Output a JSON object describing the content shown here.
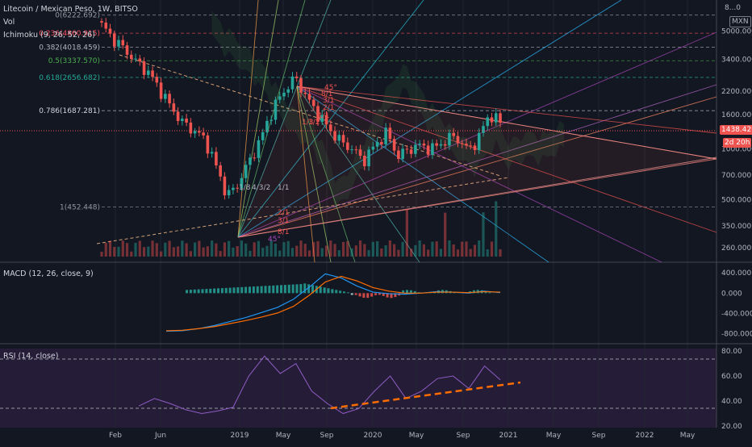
{
  "header": {
    "title": "Litecoin / Mexican Peso, 1W, BITSO",
    "vol_label": "Vol",
    "ichimoku_label": "Ichimoku (9, 26, 52, 26)",
    "currency_badge": "MXN",
    "top_right_value": "8...0"
  },
  "price_panel": {
    "axis_ticks": [
      "5000.000",
      "3400.000",
      "2200.000",
      "1600.000",
      "1000.000",
      "700.000",
      "500.000",
      "350.000",
      "260.000"
    ],
    "current_price": "1438.420",
    "countdown": "2d 20h",
    "fib_levels": [
      {
        "label": "0(6222.692)",
        "color": "#9598a1"
      },
      {
        "label": "0.236(4860.915)",
        "color": "#f7525f"
      },
      {
        "label": "0.382(4018.459)",
        "color": "#b2b5be"
      },
      {
        "label": "0.5(3337.570)",
        "color": "#4caf50"
      },
      {
        "label": "0.618(2656.682)",
        "color": "#22ab94"
      },
      {
        "label": "0.786(1687.281)",
        "color": "#d1d4dc"
      },
      {
        "label": "1(452.448)",
        "color": "#9598a1"
      }
    ],
    "gann_labels_upper": [
      "45°",
      "8/1",
      "3/1",
      "2/1",
      "1/1",
      "1/2",
      "1/3"
    ],
    "gann_labels_lower": [
      "1/8",
      "4/3/2",
      "1/1",
      "2/1",
      "3/1",
      "8/1",
      "45°"
    ]
  },
  "macd_panel": {
    "label": "MACD (12, 26, close, 9)",
    "axis_ticks": [
      "400.000",
      "0.000",
      "-400.000",
      "-800.000"
    ]
  },
  "rsi_panel": {
    "label": "RSI (14, close)",
    "axis_ticks": [
      "80.00",
      "60.00",
      "40.00",
      "20.00"
    ]
  },
  "time_axis": [
    "Feb",
    "Jun",
    "2019",
    "May",
    "Sep",
    "2020",
    "May",
    "Sep",
    "2021",
    "May",
    "Sep",
    "2022",
    "May"
  ],
  "colors": {
    "up": "#26a69a",
    "down": "#ef5350",
    "macd": "#2196f3",
    "signal": "#ff6d00",
    "rsi": "#7e57c2",
    "trend": "#ff6d00",
    "bg": "#131722"
  },
  "chart_data": [
    {
      "type": "candlestick",
      "title": "Litecoin / Mexican Peso, 1W, BITSO",
      "scale": "log",
      "ylim": [
        230,
        7000
      ],
      "x": [
        "2018-01",
        "2018-02",
        "2018-03",
        "2018-04",
        "2018-05",
        "2018-06",
        "2018-07",
        "2018-08",
        "2018-09",
        "2018-10",
        "2018-11",
        "2018-12",
        "2019-01",
        "2019-02",
        "2019-03",
        "2019-04",
        "2019-05",
        "2019-06",
        "2019-07",
        "2019-08",
        "2019-09",
        "2019-10",
        "2019-11",
        "2019-12",
        "2020-01",
        "2020-02",
        "2020-03",
        "2020-04",
        "2020-05",
        "2020-06",
        "2020-07",
        "2020-08",
        "2020-09",
        "2020-10",
        "2020-11",
        "2020-12"
      ],
      "close": [
        5400,
        4500,
        3900,
        3300,
        2900,
        2300,
        1800,
        1450,
        1300,
        1150,
        800,
        520,
        620,
        850,
        1150,
        1700,
        2200,
        2650,
        2000,
        1600,
        1300,
        1100,
        1000,
        850,
        1050,
        1250,
        900,
        1000,
        1050,
        1000,
        1100,
        1200,
        1000,
        1100,
        1600,
        1438.42
      ]
    },
    {
      "type": "line",
      "title": "MACD (12, 26, close, 9)",
      "series": [
        {
          "name": "MACD",
          "values": [
            -750,
            -740,
            -700,
            -640,
            -560,
            -480,
            -380,
            -280,
            -120,
            120,
            380,
            300,
            140,
            20,
            -10,
            -20,
            0,
            30,
            20,
            0,
            40,
            10
          ]
        },
        {
          "name": "Signal",
          "values": [
            -740,
            -730,
            -700,
            -660,
            -600,
            -540,
            -470,
            -390,
            -260,
            -40,
            220,
            330,
            240,
            110,
            40,
            0,
            0,
            20,
            20,
            10,
            30,
            20
          ]
        }
      ],
      "ylim": [
        -900,
        450
      ]
    },
    {
      "type": "line",
      "title": "RSI (14, close)",
      "series": [
        {
          "name": "RSI",
          "values": [
            36,
            42,
            38,
            33,
            30,
            32,
            35,
            60,
            76,
            62,
            70,
            48,
            38,
            30,
            34,
            48,
            60,
            42,
            48,
            58,
            60,
            50,
            68,
            57
          ]
        }
      ],
      "ylim": [
        20,
        82
      ]
    }
  ]
}
